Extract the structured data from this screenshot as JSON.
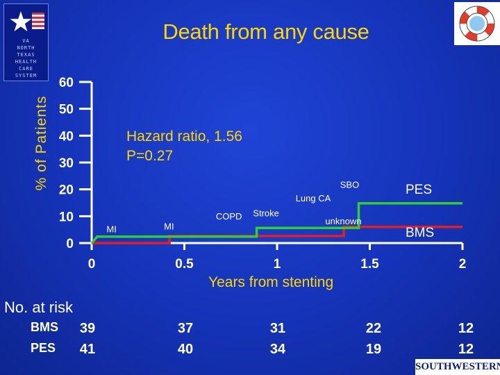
{
  "header": {
    "logo_left_text": [
      "VA",
      "NORTH TEXAS",
      "HEALTH CARE",
      "SYSTEM"
    ],
    "footer_logo": "SOUTHWESTERN"
  },
  "chart_data": {
    "type": "line",
    "title": "Death from any cause",
    "xlabel": "Years from stenting",
    "ylabel": "% of Patients",
    "xlim": [
      0,
      2
    ],
    "ylim": [
      0,
      60
    ],
    "x_ticks": [
      0,
      0.5,
      1,
      1.5,
      2
    ],
    "x_tick_labels": [
      "0",
      "0.5",
      "1",
      "1.5",
      "2"
    ],
    "y_ticks": [
      0,
      10,
      20,
      30,
      40,
      50,
      60
    ],
    "y_tick_labels": [
      "0",
      "10",
      "20",
      "30",
      "40",
      "50",
      "60"
    ],
    "series": [
      {
        "name": "PES",
        "color": "#2fcf2f",
        "steps": [
          [
            0,
            0
          ],
          [
            0.03,
            2.4
          ],
          [
            0.89,
            2.4
          ],
          [
            0.89,
            5.6
          ],
          [
            1.44,
            5.6
          ],
          [
            1.44,
            14.8
          ],
          [
            2,
            14.8
          ]
        ]
      },
      {
        "name": "BMS",
        "color": "#e81e1e",
        "steps": [
          [
            0,
            0
          ],
          [
            0.42,
            0
          ],
          [
            0.42,
            2.6
          ],
          [
            1.36,
            2.6
          ],
          [
            1.36,
            6.0
          ],
          [
            2,
            6.0
          ]
        ]
      }
    ],
    "annotations": {
      "hazard_line1": "Hazard ratio, 1.56",
      "hazard_line2": "P=0.27",
      "events": [
        {
          "text": "MI",
          "x": 0.08,
          "y": 4.0
        },
        {
          "text": "MI",
          "x": 0.39,
          "y": 5.0
        },
        {
          "text": "COPD",
          "x": 0.67,
          "y": 8.8
        },
        {
          "text": "Stroke",
          "x": 0.87,
          "y": 10.0
        },
        {
          "text": "Lung CA",
          "x": 1.1,
          "y": 15.5
        },
        {
          "text": "SBO",
          "x": 1.34,
          "y": 20.6
        },
        {
          "text": "unknown",
          "x": 1.26,
          "y": 7.0
        }
      ]
    },
    "risk_table": {
      "title": "No. at risk",
      "rows": [
        {
          "label": "BMS",
          "values": [
            "39",
            "37",
            "31",
            "22",
            "12"
          ]
        },
        {
          "label": "PES",
          "values": [
            "41",
            "40",
            "34",
            "19",
            "12"
          ]
        }
      ]
    }
  }
}
